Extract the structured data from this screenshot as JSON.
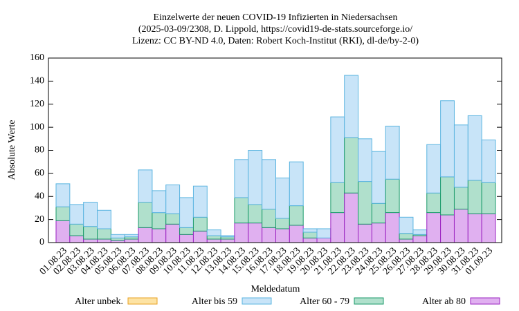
{
  "chart_data": {
    "type": "bar",
    "stacked": true,
    "title": [
      "Einzelwerte der neuen COVID-19 Infizierten in Niedersachsen",
      "(2025-03-09/2308, D. Lippold, https://covid19-de-stats.sourceforge.io/",
      "Lizenz: CC BY-ND 4.0, Daten: Robert Koch-Institut (RKI), dl-de/by-2-0)"
    ],
    "xlabel": "Meldedatum",
    "ylabel": "Absolute Werte",
    "categories": [
      "01.08.23",
      "02.08.23",
      "03.08.23",
      "04.08.23",
      "05.08.23",
      "06.08.23",
      "07.08.23",
      "08.08.23",
      "09.08.23",
      "10.08.23",
      "11.08.23",
      "12.08.23",
      "13.08.23",
      "14.08.23",
      "15.08.23",
      "16.08.23",
      "17.08.23",
      "18.08.23",
      "19.08.23",
      "20.08.23",
      "21.08.23",
      "22.08.23",
      "23.08.23",
      "24.08.23",
      "25.08.23",
      "26.08.23",
      "27.08.23",
      "28.08.23",
      "29.08.23",
      "30.08.23",
      "31.08.23",
      "01.09.23"
    ],
    "series": [
      {
        "name": "Alter unbek.",
        "color": "#fde3a4",
        "stroke": "#e8a020",
        "values": [
          0,
          0,
          0,
          0,
          0,
          0,
          0,
          0,
          0,
          0,
          0,
          0,
          0,
          0,
          0,
          0,
          0,
          0,
          0,
          0,
          0,
          0,
          0,
          0,
          0,
          0,
          0,
          0,
          0,
          0,
          0,
          0
        ]
      },
      {
        "name": "Alter bis 59",
        "color": "#c8e4f8",
        "stroke": "#5ab4e0",
        "values": [
          20,
          17,
          21,
          16,
          3,
          2,
          28,
          19,
          25,
          26,
          27,
          5,
          1,
          33,
          47,
          43,
          35,
          38,
          3,
          8,
          57,
          54,
          37,
          45,
          46,
          14,
          4,
          42,
          66,
          54,
          56,
          37
        ]
      },
      {
        "name": "Alter 60 - 79",
        "color": "#b0e0cc",
        "stroke": "#1a9a6a",
        "values": [
          12,
          10,
          11,
          9,
          2,
          2,
          22,
          14,
          9,
          6,
          12,
          3,
          2,
          22,
          16,
          16,
          9,
          17,
          5,
          0,
          26,
          48,
          37,
          17,
          29,
          5,
          1,
          17,
          33,
          19,
          29,
          27
        ]
      },
      {
        "name": "Alter ab 80",
        "color": "#e0b0f0",
        "stroke": "#9a20c0",
        "values": [
          19,
          6,
          3,
          3,
          2,
          3,
          13,
          12,
          16,
          7,
          10,
          3,
          3,
          17,
          17,
          13,
          12,
          15,
          4,
          4,
          26,
          43,
          16,
          17,
          26,
          3,
          6,
          26,
          24,
          29,
          25,
          25
        ]
      }
    ],
    "stack_order": [
      3,
      2,
      1,
      0
    ],
    "ylim": [
      0,
      160
    ],
    "yticks": [
      0,
      20,
      40,
      60,
      80,
      100,
      120,
      140,
      160
    ],
    "grid": false
  }
}
